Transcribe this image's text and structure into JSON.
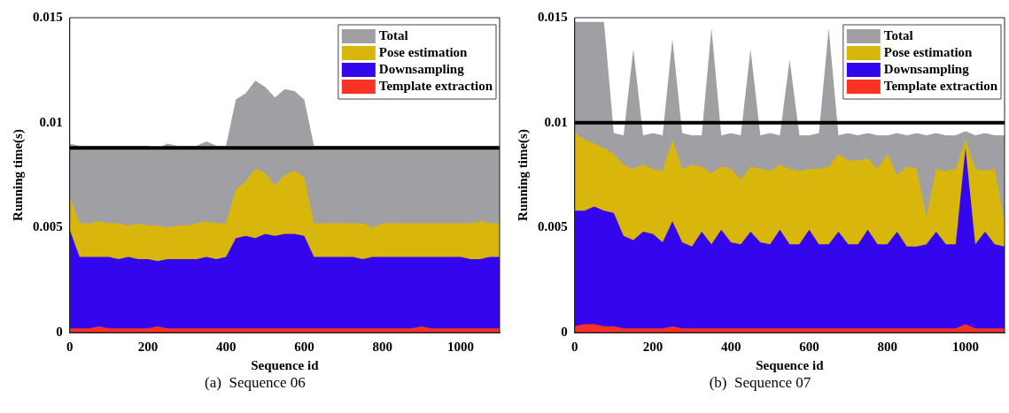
{
  "chart_data": [
    {
      "type": "area",
      "xlabel": "Sequence id",
      "ylabel": "Running time(s)",
      "annotations": [
        "(a)  Sequence 06"
      ],
      "x": [
        0,
        25,
        50,
        75,
        100,
        125,
        150,
        175,
        200,
        225,
        250,
        275,
        300,
        325,
        350,
        375,
        400,
        425,
        450,
        475,
        500,
        525,
        550,
        575,
        600,
        625,
        650,
        675,
        700,
        725,
        750,
        775,
        800,
        825,
        850,
        875,
        900,
        925,
        950,
        975,
        1000,
        1025,
        1050,
        1075,
        1100
      ],
      "xlim": [
        0,
        1100
      ],
      "xticks": [
        0,
        200,
        400,
        600,
        800,
        1000
      ],
      "ylim": [
        0,
        0.015
      ],
      "yticks": [
        0,
        0.005,
        0.01,
        0.015
      ],
      "legend": "top right",
      "grid": false,
      "ref_lines": [
        {
          "axis": "y",
          "value": 0.0088,
          "color": "#000000"
        }
      ],
      "series": [
        {
          "name": "Total",
          "color": "#a0a0a4",
          "values": [
            0.009,
            0.0089,
            0.0089,
            0.0089,
            0.0089,
            0.0089,
            0.0089,
            0.0089,
            0.0089,
            0.0088,
            0.009,
            0.0089,
            0.0089,
            0.0089,
            0.0091,
            0.0089,
            0.0089,
            0.0111,
            0.0114,
            0.012,
            0.0117,
            0.0112,
            0.0116,
            0.0115,
            0.0111,
            0.0089,
            0.0089,
            0.0089,
            0.0089,
            0.0089,
            0.0089,
            0.0089,
            0.0089,
            0.0089,
            0.0089,
            0.0089,
            0.0089,
            0.0089,
            0.0089,
            0.0089,
            0.0089,
            0.0089,
            0.0089,
            0.0089,
            0.0089
          ]
        },
        {
          "name": "Pose estimation",
          "color": "#d9b60b",
          "values": [
            0.0065,
            0.0052,
            0.0052,
            0.0053,
            0.0052,
            0.0052,
            0.0051,
            0.0052,
            0.0051,
            0.0051,
            0.005,
            0.0051,
            0.0051,
            0.0052,
            0.0053,
            0.0052,
            0.0052,
            0.0068,
            0.0072,
            0.0078,
            0.0076,
            0.007,
            0.0075,
            0.0077,
            0.0074,
            0.0052,
            0.0052,
            0.0052,
            0.0052,
            0.0052,
            0.0052,
            0.005,
            0.0052,
            0.0052,
            0.0052,
            0.0052,
            0.0052,
            0.0052,
            0.0052,
            0.0052,
            0.0052,
            0.0052,
            0.0053,
            0.0052,
            0.0052
          ]
        },
        {
          "name": "Downsampling",
          "color": "#3306ee",
          "values": [
            0.0049,
            0.0036,
            0.0036,
            0.0036,
            0.0036,
            0.0035,
            0.0036,
            0.0035,
            0.0035,
            0.0034,
            0.0035,
            0.0035,
            0.0035,
            0.0035,
            0.0036,
            0.0035,
            0.0036,
            0.0045,
            0.0046,
            0.0045,
            0.0047,
            0.0046,
            0.0047,
            0.0047,
            0.0046,
            0.0036,
            0.0036,
            0.0036,
            0.0036,
            0.0036,
            0.0035,
            0.0036,
            0.0036,
            0.0036,
            0.0036,
            0.0036,
            0.0036,
            0.0036,
            0.0036,
            0.0036,
            0.0036,
            0.0035,
            0.0035,
            0.0036,
            0.0036
          ]
        },
        {
          "name": "Template extraction",
          "color": "#f93224",
          "values": [
            0.0002,
            0.0002,
            0.0002,
            0.0003,
            0.0002,
            0.0002,
            0.0002,
            0.0002,
            0.0002,
            0.0003,
            0.0002,
            0.0002,
            0.0002,
            0.0002,
            0.0002,
            0.0002,
            0.0002,
            0.0002,
            0.0002,
            0.0002,
            0.0002,
            0.0002,
            0.0002,
            0.0002,
            0.0002,
            0.0002,
            0.0002,
            0.0002,
            0.0002,
            0.0002,
            0.0002,
            0.0002,
            0.0002,
            0.0002,
            0.0002,
            0.0002,
            0.0003,
            0.0002,
            0.0002,
            0.0002,
            0.0002,
            0.0002,
            0.0002,
            0.0002,
            0.0002
          ]
        }
      ]
    },
    {
      "type": "area",
      "xlabel": "Sequence id",
      "ylabel": "Running time(s)",
      "annotations": [
        "(b)  Sequence 07"
      ],
      "x": [
        0,
        25,
        50,
        75,
        100,
        125,
        150,
        175,
        200,
        225,
        250,
        275,
        300,
        325,
        350,
        375,
        400,
        425,
        450,
        475,
        500,
        525,
        550,
        575,
        600,
        625,
        650,
        675,
        700,
        725,
        750,
        775,
        800,
        825,
        850,
        875,
        900,
        925,
        950,
        975,
        1000,
        1025,
        1050,
        1075,
        1100
      ],
      "xlim": [
        0,
        1100
      ],
      "xticks": [
        0,
        200,
        400,
        600,
        800,
        1000
      ],
      "ylim": [
        0,
        0.015
      ],
      "yticks": [
        0,
        0.005,
        0.01,
        0.015
      ],
      "legend": "top right",
      "grid": false,
      "ref_lines": [
        {
          "axis": "y",
          "value": 0.01,
          "color": "#000000"
        }
      ],
      "series": [
        {
          "name": "Total",
          "color": "#a0a0a4",
          "values": [
            0.0148,
            0.0148,
            0.0148,
            0.0148,
            0.0095,
            0.0094,
            0.0135,
            0.0094,
            0.0095,
            0.0094,
            0.014,
            0.0095,
            0.0094,
            0.0094,
            0.0145,
            0.0094,
            0.0095,
            0.0094,
            0.0135,
            0.0094,
            0.0095,
            0.0094,
            0.013,
            0.0094,
            0.0094,
            0.0095,
            0.0145,
            0.0094,
            0.0095,
            0.0094,
            0.0095,
            0.0094,
            0.0094,
            0.0095,
            0.0094,
            0.0095,
            0.0094,
            0.0095,
            0.0094,
            0.0094,
            0.0096,
            0.0094,
            0.0095,
            0.0094,
            0.0094
          ]
        },
        {
          "name": "Pose estimation",
          "color": "#d9b60b",
          "values": [
            0.0095,
            0.0092,
            0.009,
            0.0088,
            0.0085,
            0.008,
            0.0078,
            0.008,
            0.0078,
            0.0077,
            0.0092,
            0.0078,
            0.008,
            0.0079,
            0.0076,
            0.0079,
            0.0078,
            0.0073,
            0.0079,
            0.0078,
            0.0077,
            0.008,
            0.0078,
            0.0077,
            0.0078,
            0.0078,
            0.0079,
            0.0085,
            0.0082,
            0.0082,
            0.0083,
            0.0078,
            0.0085,
            0.0075,
            0.0079,
            0.0078,
            0.0055,
            0.0078,
            0.0077,
            0.0078,
            0.0092,
            0.0078,
            0.0077,
            0.0078,
            0.0052
          ]
        },
        {
          "name": "Downsampling",
          "color": "#3306ee",
          "values": [
            0.0058,
            0.0058,
            0.006,
            0.0058,
            0.0057,
            0.0046,
            0.0044,
            0.0048,
            0.0047,
            0.0043,
            0.0053,
            0.0043,
            0.0041,
            0.0048,
            0.0042,
            0.0049,
            0.0043,
            0.0042,
            0.0048,
            0.0043,
            0.0042,
            0.0049,
            0.0042,
            0.0042,
            0.0049,
            0.0042,
            0.0042,
            0.0048,
            0.0042,
            0.0042,
            0.0049,
            0.0042,
            0.0042,
            0.0048,
            0.0041,
            0.0041,
            0.0042,
            0.0048,
            0.0042,
            0.0042,
            0.0088,
            0.0042,
            0.0048,
            0.0042,
            0.0041
          ]
        },
        {
          "name": "Template extraction",
          "color": "#f93224",
          "values": [
            0.0003,
            0.0004,
            0.0004,
            0.0003,
            0.0003,
            0.0002,
            0.0002,
            0.0002,
            0.0002,
            0.0002,
            0.0003,
            0.0002,
            0.0002,
            0.0002,
            0.0002,
            0.0002,
            0.0002,
            0.0002,
            0.0002,
            0.0002,
            0.0002,
            0.0002,
            0.0002,
            0.0002,
            0.0002,
            0.0002,
            0.0002,
            0.0002,
            0.0002,
            0.0002,
            0.0002,
            0.0002,
            0.0002,
            0.0002,
            0.0002,
            0.0002,
            0.0002,
            0.0002,
            0.0002,
            0.0002,
            0.0004,
            0.0002,
            0.0002,
            0.0002,
            0.0002
          ]
        }
      ]
    }
  ]
}
